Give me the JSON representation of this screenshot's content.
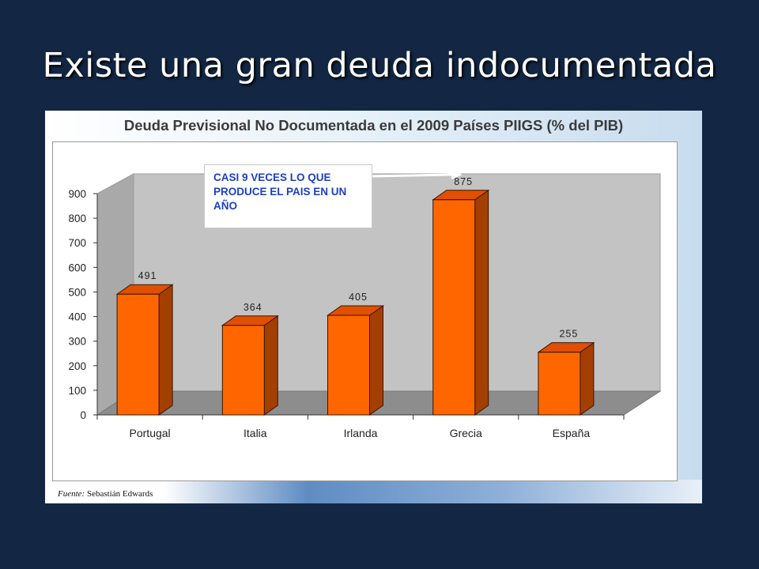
{
  "slide": {
    "title": "Existe una gran deuda indocumentada"
  },
  "figure": {
    "source_label": "Fuente:",
    "source_name": "Sebastián Edwards",
    "annotation": "CASI 9 VECES LO QUE PRODUCE EL PAIS EN UN AÑO"
  },
  "colors": {
    "bar_front": "#ff6600",
    "bar_side": "#a33f00",
    "bar_top": "#e05000",
    "wall": "#c3c3c3",
    "floor": "#8d8d8d",
    "annotation_text": "#1d3fc4"
  },
  "chart_data": {
    "type": "bar",
    "title": "Deuda Previsional No Documentada en el 2009 Países PIIGS (% del PIB)",
    "xlabel": "",
    "ylabel": "",
    "categories": [
      "Portugal",
      "Italia",
      "Irlanda",
      "Grecia",
      "España"
    ],
    "values": [
      491,
      364,
      405,
      875,
      255
    ],
    "data_labels": [
      "491",
      "364",
      "405",
      "875",
      "255"
    ],
    "yticks": [
      "0",
      "100",
      "200",
      "300",
      "400",
      "500",
      "600",
      "700",
      "800",
      "900"
    ],
    "ylim": [
      0,
      900
    ],
    "grid": false,
    "legend": "none",
    "style": "3d-column"
  }
}
